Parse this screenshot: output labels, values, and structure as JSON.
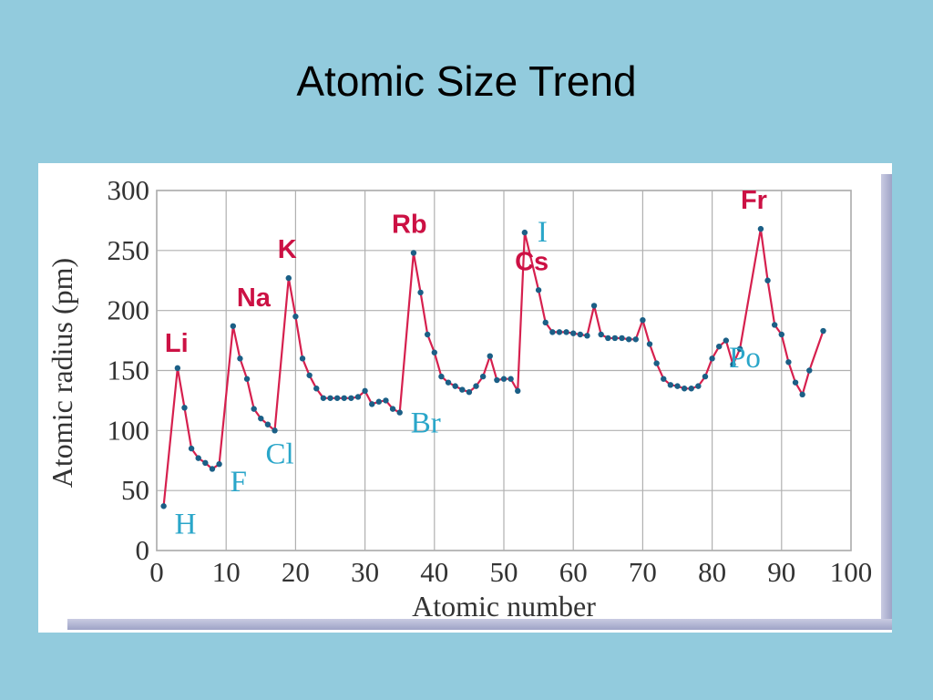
{
  "slide": {
    "title": "Atomic Size Trend"
  },
  "colors": {
    "background": "#92cbdd",
    "line": "#d6204e",
    "marker": "#1b5f86",
    "alkali_label": "#cc1144",
    "halogen_label": "#2aa6c9",
    "grid": "#b0b0b0"
  },
  "chart_data": {
    "type": "line",
    "xlabel": "Atomic number",
    "ylabel": "Atomic radius (pm)",
    "xlim": [
      0,
      100
    ],
    "ylim": [
      0,
      300
    ],
    "xticks": [
      0,
      10,
      20,
      30,
      40,
      50,
      60,
      70,
      80,
      90,
      100
    ],
    "yticks": [
      0,
      50,
      100,
      150,
      200,
      250,
      300
    ],
    "grid": true,
    "series": [
      {
        "x": [
          1,
          3,
          4,
          5,
          6,
          7,
          8,
          9,
          11,
          12,
          13,
          14,
          15,
          16,
          17,
          19,
          20,
          21,
          22,
          23,
          24,
          25,
          26,
          27,
          28,
          29,
          30,
          31,
          32,
          33,
          34,
          35,
          37,
          38,
          39,
          40,
          41,
          42,
          43,
          44,
          45,
          46,
          47,
          48,
          49,
          50,
          51,
          52,
          53,
          55,
          56,
          57,
          58,
          59,
          60,
          61,
          62,
          63,
          64,
          65,
          66,
          67,
          68,
          69,
          70,
          71,
          72,
          73,
          74,
          75,
          76,
          77,
          78,
          79,
          80,
          81,
          82,
          83,
          84,
          87,
          88,
          89,
          90,
          91,
          92,
          93,
          94,
          96
        ],
        "y": [
          37,
          152,
          119,
          85,
          77,
          73,
          68,
          72,
          187,
          160,
          143,
          118,
          110,
          105,
          100,
          227,
          195,
          160,
          146,
          135,
          127,
          127,
          127,
          127,
          127,
          128,
          133,
          122,
          124,
          125,
          118,
          115,
          248,
          215,
          180,
          165,
          145,
          140,
          137,
          134,
          132,
          137,
          145,
          162,
          142,
          143,
          143,
          133,
          265,
          217,
          190,
          182,
          182,
          182,
          181,
          180,
          179,
          204,
          180,
          177,
          177,
          177,
          176,
          176,
          192,
          172,
          156,
          143,
          138,
          137,
          135,
          135,
          137,
          145,
          160,
          170,
          175,
          155,
          168,
          268,
          225,
          188,
          180,
          157,
          140,
          130,
          150,
          183
        ]
      }
    ],
    "annotations": [
      {
        "text": "Li",
        "x": 3,
        "group": "alkali"
      },
      {
        "text": "Na",
        "x": 11,
        "group": "alkali"
      },
      {
        "text": "K",
        "x": 19,
        "group": "alkali"
      },
      {
        "text": "Rb",
        "x": 37,
        "group": "alkali"
      },
      {
        "text": "Cs",
        "x": 55,
        "group": "alkali"
      },
      {
        "text": "Fr",
        "x": 87,
        "group": "alkali"
      },
      {
        "text": "H",
        "x": 1,
        "group": "other"
      },
      {
        "text": "F",
        "x": 9,
        "group": "other"
      },
      {
        "text": "Cl",
        "x": 17,
        "group": "other"
      },
      {
        "text": "Br",
        "x": 35,
        "group": "other"
      },
      {
        "text": "I",
        "x": 53,
        "group": "other"
      },
      {
        "text": "Po",
        "x": 84,
        "group": "other"
      }
    ]
  }
}
